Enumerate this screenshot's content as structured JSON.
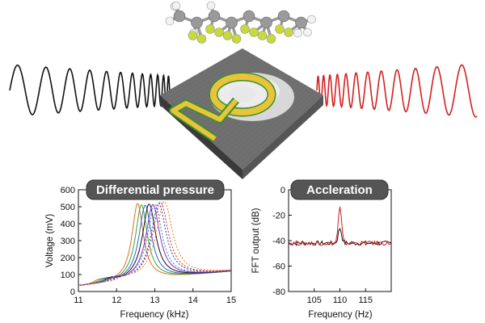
{
  "colors": {
    "input_wave": "#111111",
    "output_wave": "#d42020",
    "badge_fill": "#555555",
    "chip_body": "#6e6e6e",
    "electrode": "#e8c43a",
    "trace_green": "#3c8f2f",
    "carbon": "#9a9a9a",
    "fluorine": "#c8d93a",
    "hydrogen": "#f2f2f2"
  },
  "illustration": {
    "molecule_icon": "fluorinated-alkane-molecule-icon",
    "chip_icon": "resonator-chip-icon"
  },
  "chart_data": [
    {
      "type": "line",
      "title": "Differential pressure",
      "xlabel": "Frequency (kHz)",
      "ylabel": "Voltage (mV)",
      "xlim": [
        11,
        15
      ],
      "ylim": [
        0,
        600
      ],
      "xticks": [
        11,
        12,
        13,
        14,
        15
      ],
      "yticks": [
        0,
        100,
        200,
        300,
        400,
        500,
        600
      ],
      "grid": false,
      "series": [
        {
          "color": "#e07020",
          "style": "solid",
          "peak_x": 12.55,
          "peak_y": 515
        },
        {
          "color": "#33aa33",
          "style": "solid",
          "peak_x": 12.65,
          "peak_y": 505
        },
        {
          "color": "#3060d0",
          "style": "solid",
          "peak_x": 12.75,
          "peak_y": 500
        },
        {
          "color": "#111111",
          "style": "solid",
          "peak_x": 12.85,
          "peak_y": 505
        },
        {
          "color": "#8a2be2",
          "style": "solid",
          "peak_x": 12.95,
          "peak_y": 500
        },
        {
          "color": "#1a9a8a",
          "style": "dashed",
          "peak_x": 13.0,
          "peak_y": 500
        },
        {
          "color": "#2040c0",
          "style": "dashed",
          "peak_x": 13.1,
          "peak_y": 505
        },
        {
          "color": "#e02020",
          "style": "dashed",
          "peak_x": 13.15,
          "peak_y": 510
        },
        {
          "color": "#e08020",
          "style": "dashed",
          "peak_x": 13.25,
          "peak_y": 510
        }
      ]
    },
    {
      "type": "line",
      "title": "Accleration",
      "xlabel": "Frequency (Hz)",
      "ylabel": "FFT output (dB)",
      "xlim": [
        100,
        120
      ],
      "ylim": [
        -80,
        0
      ],
      "xticks": [
        105,
        110,
        115
      ],
      "yticks": [
        0,
        -20,
        -40,
        -60,
        -80
      ],
      "grid": false,
      "series": [
        {
          "color": "#111111",
          "style": "solid",
          "peak_x": 110,
          "peak_y": -30,
          "baseline": -42
        },
        {
          "color": "#d42020",
          "style": "solid",
          "peak_x": 110,
          "peak_y": -14,
          "baseline": -42
        }
      ]
    }
  ]
}
